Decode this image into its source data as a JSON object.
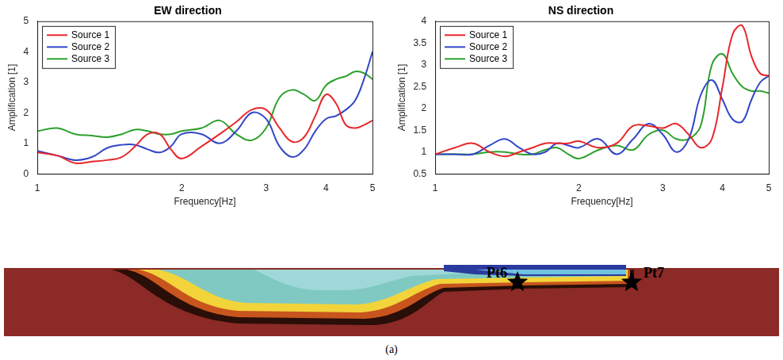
{
  "chart_data": [
    {
      "type": "line",
      "title": "EW direction",
      "x_label": "Frequency[Hz]",
      "y_label": "Amplification [1]",
      "log": "x",
      "grid": false,
      "legend": "upper left",
      "xlim": [
        1,
        5
      ],
      "xticks": [
        1,
        2,
        3,
        4,
        5
      ],
      "ylim": [
        0,
        5
      ],
      "yticks": [
        0,
        1,
        2,
        3,
        4,
        5
      ],
      "x": [
        1,
        1.1,
        1.2,
        1.3,
        1.4,
        1.5,
        1.6,
        1.7,
        1.8,
        1.9,
        2,
        2.2,
        2.4,
        2.6,
        2.8,
        3,
        3.2,
        3.4,
        3.6,
        3.8,
        4,
        4.2,
        4.4,
        4.6,
        4.8,
        5
      ],
      "series": [
        {
          "name": "Source 1",
          "color": "#e8262a",
          "values": [
            0.7,
            0.6,
            0.35,
            0.4,
            0.45,
            0.55,
            0.9,
            1.3,
            1.3,
            0.8,
            0.5,
            0.9,
            1.3,
            1.7,
            2.1,
            2.1,
            1.5,
            1.05,
            1.2,
            1.9,
            2.6,
            2.3,
            1.6,
            1.5,
            1.6,
            1.75
          ]
        },
        {
          "name": "Source 2",
          "color": "#3346c7",
          "values": [
            0.75,
            0.6,
            0.45,
            0.55,
            0.85,
            0.95,
            0.95,
            0.8,
            0.7,
            0.9,
            1.3,
            1.3,
            1.0,
            1.4,
            2.0,
            1.8,
            0.9,
            0.55,
            0.8,
            1.4,
            1.8,
            1.9,
            2.1,
            2.4,
            3.1,
            4.0
          ]
        },
        {
          "name": "Source 3",
          "color": "#2ca02c",
          "values": [
            1.4,
            1.5,
            1.3,
            1.25,
            1.2,
            1.3,
            1.45,
            1.4,
            1.3,
            1.3,
            1.4,
            1.5,
            1.75,
            1.3,
            1.1,
            1.5,
            2.5,
            2.75,
            2.6,
            2.4,
            2.9,
            3.1,
            3.2,
            3.35,
            3.3,
            3.1
          ]
        }
      ]
    },
    {
      "type": "line",
      "title": "NS direction",
      "x_label": "Frequency[Hz]",
      "y_label": "Amplification [1]",
      "log": "x",
      "grid": false,
      "legend": "upper left",
      "xlim": [
        1,
        5
      ],
      "xticks": [
        1,
        2,
        3,
        4,
        5
      ],
      "ylim": [
        0.5,
        4
      ],
      "yticks": [
        0.5,
        1,
        1.5,
        2,
        2.5,
        3,
        3.5,
        4
      ],
      "x": [
        1,
        1.1,
        1.2,
        1.3,
        1.4,
        1.5,
        1.6,
        1.7,
        1.8,
        1.9,
        2,
        2.2,
        2.4,
        2.6,
        2.8,
        3,
        3.2,
        3.4,
        3.6,
        3.8,
        4,
        4.2,
        4.4,
        4.6,
        4.8,
        5
      ],
      "series": [
        {
          "name": "Source 1",
          "color": "#e8262a",
          "values": [
            0.95,
            1.1,
            1.2,
            1.0,
            0.9,
            1.0,
            1.1,
            1.2,
            1.2,
            1.2,
            1.25,
            1.1,
            1.2,
            1.6,
            1.6,
            1.55,
            1.65,
            1.4,
            1.1,
            1.3,
            2.5,
            3.7,
            3.9,
            3.2,
            2.8,
            2.75
          ]
        },
        {
          "name": "Source 2",
          "color": "#3346c7",
          "values": [
            0.95,
            0.95,
            0.95,
            1.15,
            1.3,
            1.1,
            0.95,
            1.0,
            1.2,
            1.15,
            1.1,
            1.3,
            0.95,
            1.3,
            1.65,
            1.4,
            1.0,
            1.3,
            2.3,
            2.65,
            2.2,
            1.75,
            1.7,
            2.2,
            2.6,
            2.75
          ]
        },
        {
          "name": "Source 3",
          "color": "#2ca02c",
          "values": [
            0.95,
            0.95,
            0.95,
            1.0,
            1.0,
            0.95,
            0.95,
            1.05,
            1.1,
            0.95,
            0.85,
            1.05,
            1.15,
            1.05,
            1.4,
            1.5,
            1.3,
            1.3,
            1.6,
            3.0,
            3.25,
            2.8,
            2.5,
            2.4,
            2.4,
            2.35
          ]
        }
      ]
    }
  ],
  "cross_section": {
    "markers": [
      {
        "label": "Pt6"
      },
      {
        "label": "Pt7"
      }
    ],
    "caption": "(a)"
  }
}
